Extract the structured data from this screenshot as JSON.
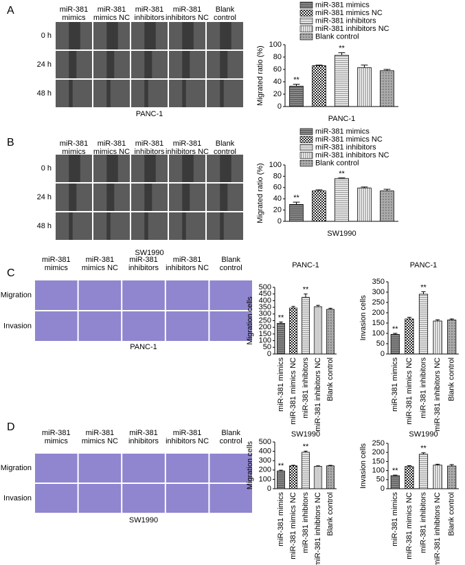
{
  "panels": [
    {
      "letter": "A",
      "columns": [
        [
          "miR-381",
          "mimics"
        ],
        [
          "miR-381",
          "mimics NC"
        ],
        [
          "miR-381",
          "inhibitors"
        ],
        [
          "miR-381",
          "inhibitors NC"
        ],
        [
          "Blank",
          "control"
        ]
      ],
      "rows": [
        "0 h",
        "24 h",
        "48 h"
      ],
      "caption": "PANC-1"
    },
    {
      "letter": "B",
      "columns": [
        [
          "miR-381",
          "mimics"
        ],
        [
          "miR-381",
          "mimics NC"
        ],
        [
          "miR-381",
          "inhibitors"
        ],
        [
          "miR-381",
          "inhibitors NC"
        ],
        [
          "Blank",
          "control"
        ]
      ],
      "rows": [
        "0 h",
        "24 h",
        "48 h"
      ],
      "caption": "SW1990"
    },
    {
      "letter": "C",
      "columns": [
        [
          "miR-381",
          "mimics"
        ],
        [
          "miR-381",
          "mimics NC"
        ],
        [
          "miR-381",
          "inhibitors"
        ],
        [
          "miR-381",
          "inhibitors NC"
        ],
        [
          "Blank",
          "control"
        ]
      ],
      "rows": [
        "Migration",
        "Invasion"
      ],
      "caption": "PANC-1"
    },
    {
      "letter": "D",
      "columns": [
        [
          "miR-381",
          "mimics"
        ],
        [
          "miR-381",
          "mimics NC"
        ],
        [
          "miR-381",
          "inhibitors"
        ],
        [
          "miR-381",
          "inhibitors NC"
        ],
        [
          "Blank",
          "control"
        ]
      ],
      "rows": [
        "Migration",
        "Invasion"
      ],
      "caption": "SW1990"
    }
  ],
  "chart_data": [
    {
      "type": "bar",
      "ylabel": "Migrated ratio (%)",
      "xlabel": "PANC-1",
      "legend": true,
      "categories": [
        "miR-381 mimics",
        "miR-381 mimics NC",
        "miR-381 inhibitors",
        "miR-381 inhibitors NC",
        "Blank control"
      ],
      "values": [
        33,
        66,
        83,
        63,
        58
      ],
      "errors": [
        3,
        1,
        4,
        4,
        2
      ],
      "significance": [
        "**",
        null,
        "**",
        null,
        null
      ],
      "ylim": [
        0,
        100
      ],
      "yticks": [
        0,
        20,
        40,
        60,
        80,
        100
      ]
    },
    {
      "type": "bar",
      "ylabel": "Migrated ratio (%)",
      "xlabel": "SW1990",
      "legend": true,
      "categories": [
        "miR-381 mimics",
        "miR-381 mimics NC",
        "miR-381 inhibitors",
        "miR-381 inhibitors NC",
        "Blank control"
      ],
      "values": [
        30,
        54,
        76,
        59,
        54
      ],
      "errors": [
        4,
        2,
        1,
        2,
        3
      ],
      "significance": [
        "**",
        null,
        "**",
        null,
        null
      ],
      "ylim": [
        0,
        100
      ],
      "yticks": [
        0,
        20,
        40,
        60,
        80,
        100
      ]
    },
    {
      "type": "bar",
      "title": "PANC-1",
      "ylabel": "Migration cells",
      "legend": false,
      "categories": [
        "miR-381 mimics",
        "miR-381 mimics NC",
        "miR-381 inhibitors",
        "miR-381 inhibitors NC",
        "Blank control"
      ],
      "values": [
        230,
        345,
        425,
        355,
        335
      ],
      "errors": [
        10,
        12,
        25,
        10,
        8
      ],
      "significance": [
        "**",
        null,
        "**",
        null,
        null
      ],
      "ylim": [
        0,
        500
      ],
      "yticks": [
        0,
        50,
        100,
        150,
        200,
        250,
        300,
        350,
        400,
        450,
        500
      ]
    },
    {
      "type": "bar",
      "title": "PANC-1",
      "ylabel": "Invasion cells",
      "legend": false,
      "categories": [
        "miR-381 mimics",
        "miR-381 mimics NC",
        "miR-381 inhibitors",
        "miR-381 inhibitors NC",
        "Blank control"
      ],
      "values": [
        95,
        170,
        290,
        160,
        165
      ],
      "errors": [
        5,
        8,
        12,
        6,
        5
      ],
      "significance": [
        "**",
        null,
        "**",
        null,
        null
      ],
      "ylim": [
        0,
        350
      ],
      "yticks": [
        0,
        50,
        100,
        150,
        200,
        250,
        300,
        350
      ]
    },
    {
      "type": "bar",
      "title": "SW1990",
      "ylabel": "Migration cells",
      "legend": false,
      "categories": [
        "miR-381 mimics",
        "miR-381 mimics NC",
        "miR-381 inhibitors",
        "miR-381 inhibitors NC",
        "Blank control"
      ],
      "values": [
        190,
        245,
        390,
        240,
        245
      ],
      "errors": [
        8,
        6,
        12,
        5,
        5
      ],
      "significance": [
        "**",
        null,
        "**",
        null,
        null
      ],
      "ylim": [
        0,
        500
      ],
      "yticks": [
        0,
        100,
        200,
        300,
        400,
        500
      ]
    },
    {
      "type": "bar",
      "title": "SW1990",
      "ylabel": "Invasion cells",
      "legend": false,
      "categories": [
        "miR-381 mimics",
        "miR-381 mimics NC",
        "miR-381 inhibitors",
        "miR-381 inhibitors NC",
        "Blank control"
      ],
      "values": [
        72,
        122,
        190,
        130,
        125
      ],
      "errors": [
        3,
        5,
        8,
        5,
        8
      ],
      "significance": [
        "**",
        null,
        "**",
        null,
        null
      ],
      "ylim": [
        0,
        250
      ],
      "yticks": [
        0,
        50,
        100,
        150,
        200,
        250
      ]
    }
  ]
}
